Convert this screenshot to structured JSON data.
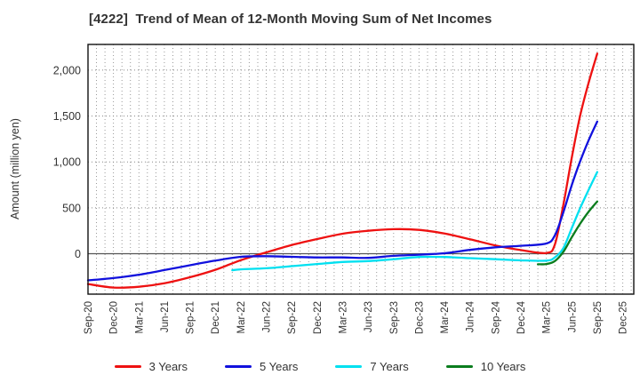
{
  "title": "[4222]  Trend of Mean of 12-Month Moving Sum of Net Incomes",
  "y_axis": {
    "label": "Amount (million yen)",
    "tick_labels": [
      "0",
      "500",
      "1,000",
      "1,500",
      "2,000"
    ],
    "tick_values": [
      0,
      500,
      1000,
      1500,
      2000
    ]
  },
  "x_axis": {
    "tick_labels": [
      "Sep-20",
      "Dec-20",
      "Mar-21",
      "Jun-21",
      "Sep-21",
      "Dec-21",
      "Mar-22",
      "Jun-22",
      "Sep-22",
      "Dec-22",
      "Mar-23",
      "Jun-23",
      "Sep-23",
      "Dec-23",
      "Mar-24",
      "Jun-24",
      "Sep-24",
      "Dec-24",
      "Mar-25",
      "Jun-25",
      "Sep-25",
      "Dec-25"
    ],
    "tick_month_index": [
      0,
      3,
      6,
      9,
      12,
      15,
      18,
      21,
      24,
      27,
      30,
      33,
      36,
      39,
      42,
      45,
      48,
      51,
      54,
      57,
      60,
      63
    ]
  },
  "legend": {
    "items": [
      {
        "label": "3 Years",
        "color": "#ee1111"
      },
      {
        "label": "5 Years",
        "color": "#1111dd"
      },
      {
        "label": "7 Years",
        "color": "#00e0f0"
      },
      {
        "label": "10 Years",
        "color": "#0b7d1e"
      }
    ]
  },
  "chart_data": {
    "type": "line",
    "title": "[4222]  Trend of Mean of 12-Month Moving Sum of Net Incomes",
    "xlabel": "",
    "ylabel": "Amount (million yen)",
    "x_unit": "month index from Sep-2020 (0 = Sep-20, 63 = Dec-25)",
    "xlim": [
      0,
      64.3
    ],
    "ylim": [
      -440,
      2280
    ],
    "y_gridlines_dotted": [
      500,
      1000,
      1500,
      2000
    ],
    "zero_line": 0,
    "grid": "dotted vertical line every month; dotted horizontal every 500; solid gray zero line",
    "legend_position": "bottom",
    "colors": {
      "grid": "#999999",
      "zero_line": "#555555",
      "frame": "#111111",
      "tick_text": "#333333",
      "title_text": "#333333"
    },
    "series": [
      {
        "name": "3 Years",
        "color": "#ee1111",
        "points": [
          [
            0,
            -330
          ],
          [
            3,
            -368
          ],
          [
            6,
            -360
          ],
          [
            9,
            -322
          ],
          [
            12,
            -256
          ],
          [
            15,
            -175
          ],
          [
            18,
            -70
          ],
          [
            21,
            15
          ],
          [
            24,
            95
          ],
          [
            27,
            160
          ],
          [
            30,
            218
          ],
          [
            33,
            250
          ],
          [
            36,
            268
          ],
          [
            39,
            260
          ],
          [
            42,
            220
          ],
          [
            45,
            158
          ],
          [
            48,
            90
          ],
          [
            51,
            40
          ],
          [
            54,
            8
          ],
          [
            55,
            100
          ],
          [
            56,
            530
          ],
          [
            57,
            1050
          ],
          [
            58,
            1510
          ],
          [
            59,
            1870
          ],
          [
            60,
            2180
          ]
        ]
      },
      {
        "name": "5 Years",
        "color": "#1111dd",
        "points": [
          [
            0,
            -290
          ],
          [
            3,
            -265
          ],
          [
            6,
            -228
          ],
          [
            9,
            -178
          ],
          [
            12,
            -125
          ],
          [
            15,
            -75
          ],
          [
            18,
            -33
          ],
          [
            21,
            -27
          ],
          [
            24,
            -33
          ],
          [
            27,
            -40
          ],
          [
            30,
            -40
          ],
          [
            33,
            -45
          ],
          [
            36,
            -23
          ],
          [
            39,
            -10
          ],
          [
            42,
            5
          ],
          [
            45,
            42
          ],
          [
            48,
            70
          ],
          [
            51,
            87
          ],
          [
            54,
            112
          ],
          [
            55,
            200
          ],
          [
            56,
            450
          ],
          [
            57,
            750
          ],
          [
            58,
            1010
          ],
          [
            59,
            1240
          ],
          [
            60,
            1440
          ]
        ]
      },
      {
        "name": "7 Years",
        "color": "#00e0f0",
        "points": [
          [
            17,
            -180
          ],
          [
            18,
            -170
          ],
          [
            21,
            -158
          ],
          [
            24,
            -135
          ],
          [
            27,
            -112
          ],
          [
            30,
            -90
          ],
          [
            33,
            -80
          ],
          [
            36,
            -60
          ],
          [
            39,
            -35
          ],
          [
            42,
            -35
          ],
          [
            45,
            -48
          ],
          [
            48,
            -60
          ],
          [
            51,
            -72
          ],
          [
            54,
            -75
          ],
          [
            55,
            -40
          ],
          [
            56,
            60
          ],
          [
            57,
            280
          ],
          [
            58,
            500
          ],
          [
            59,
            700
          ],
          [
            60,
            890
          ]
        ]
      },
      {
        "name": "10 Years",
        "color": "#0b7d1e",
        "points": [
          [
            53,
            -115
          ],
          [
            54,
            -112
          ],
          [
            55,
            -80
          ],
          [
            56,
            20
          ],
          [
            57,
            180
          ],
          [
            58,
            330
          ],
          [
            59,
            460
          ],
          [
            60,
            570
          ]
        ]
      }
    ]
  }
}
